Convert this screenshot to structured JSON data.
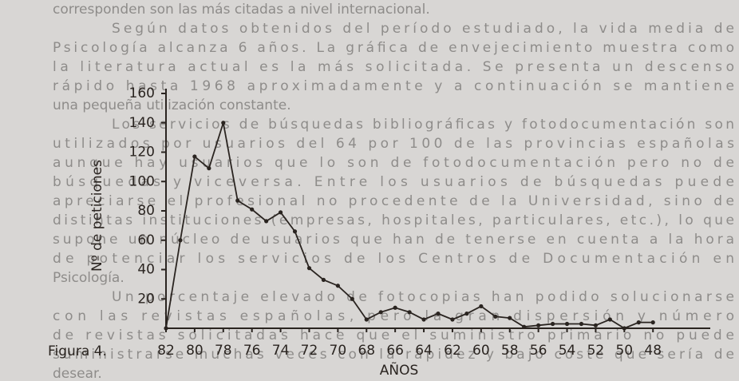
{
  "background_text": [
    "corresponden son las más citadas a nivel internacional.",
    "Según datos obtenidos del período estudiado, la vida media de",
    "Psicología alcanza 6 años. La gráfica de envejecimiento muestra como",
    "la literatura actual es la más solicitada. Se presenta un descenso",
    "rápido hasta 1968 aproximadamente y a continuación se mantiene",
    "una pequeña utilización constante.",
    "Los servicios de búsquedas bibliográficas y fotodocumentación son",
    "utilizados por usuarios del 64 por 100 de las provincias españolas",
    "aunque hay usuarios que lo son de fotodocumentación pero no de",
    "búsquedas y viceversa. Entre los usuarios de búsquedas puede",
    "apreciarse el profesional no procedente de la Universidad, sino de",
    "distintas instituciones (empresas, hospitales, particulares, etc.), lo que",
    "supone un núcleo de usuarios que han de tenerse en cuenta a la hora",
    "de potenciar los servicios de los Centros de Documentación en",
    "Psicología.",
    "Un porcentaje elevado de fotocopias han podido solucionarse",
    "con las revistas españolas, pero la gran dispersión y número",
    "de revistas solicitadas hace que el suministro primario no puede",
    "suministrarse muchas veces con la rapidez y bajo coste que sería de",
    "desear."
  ],
  "chart_data": {
    "type": "line",
    "annotation": "Figura 4.",
    "x_label": "AÑOS",
    "y_label": "Nº de peticiones",
    "x": [
      82,
      81,
      80,
      79,
      78,
      77,
      76,
      75,
      74,
      73,
      72,
      71,
      70,
      69,
      68,
      67,
      66,
      65,
      64,
      63,
      62,
      61,
      60,
      59,
      58,
      57,
      56,
      55,
      54,
      53,
      52,
      51,
      50,
      49,
      48
    ],
    "values": [
      0,
      60,
      117,
      109,
      140,
      87,
      81,
      73,
      79,
      66,
      41,
      33,
      29,
      20,
      6,
      11,
      14,
      11,
      6,
      10,
      6,
      10,
      15,
      8,
      7,
      1,
      2,
      3,
      3,
      3,
      2,
      6,
      0,
      4,
      4
    ],
    "color": "#2a2420",
    "xlim": [
      82,
      44
    ],
    "xticks": [
      82,
      80,
      78,
      76,
      74,
      72,
      70,
      68,
      66,
      64,
      62,
      60,
      58,
      56,
      54,
      52,
      50,
      48
    ],
    "ylim": [
      0,
      160
    ],
    "yticks": [
      20,
      40,
      60,
      80,
      100,
      120,
      140,
      160
    ]
  }
}
